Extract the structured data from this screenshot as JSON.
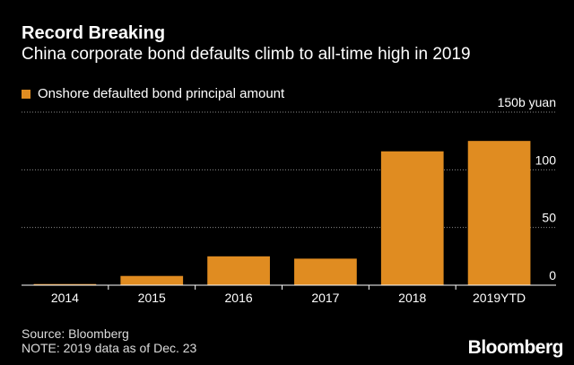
{
  "title": "Record Breaking",
  "subtitle": "China corporate bond defaults climb to all-time high in 2019",
  "legend": "Onshore defaulted bond principal amount",
  "source": "Source: Bloomberg",
  "note": "NOTE: 2019 data as of Dec. 23",
  "brand": "Bloomberg",
  "colors": {
    "bar": "#e08c21",
    "background": "#000000",
    "axis": "#ffffff",
    "grid": "#8a8a8a"
  },
  "chart_data": {
    "type": "bar",
    "categories": [
      "2014",
      "2015",
      "2016",
      "2017",
      "2018",
      "2019YTD"
    ],
    "values": [
      1,
      8,
      25,
      23,
      116,
      125
    ],
    "ylim": [
      0,
      150
    ],
    "yticks": [
      0,
      50,
      100,
      150
    ],
    "ytick_labels": [
      "0",
      "50",
      "100",
      "150b yuan"
    ],
    "grid": true,
    "y_axis_position": "right"
  }
}
